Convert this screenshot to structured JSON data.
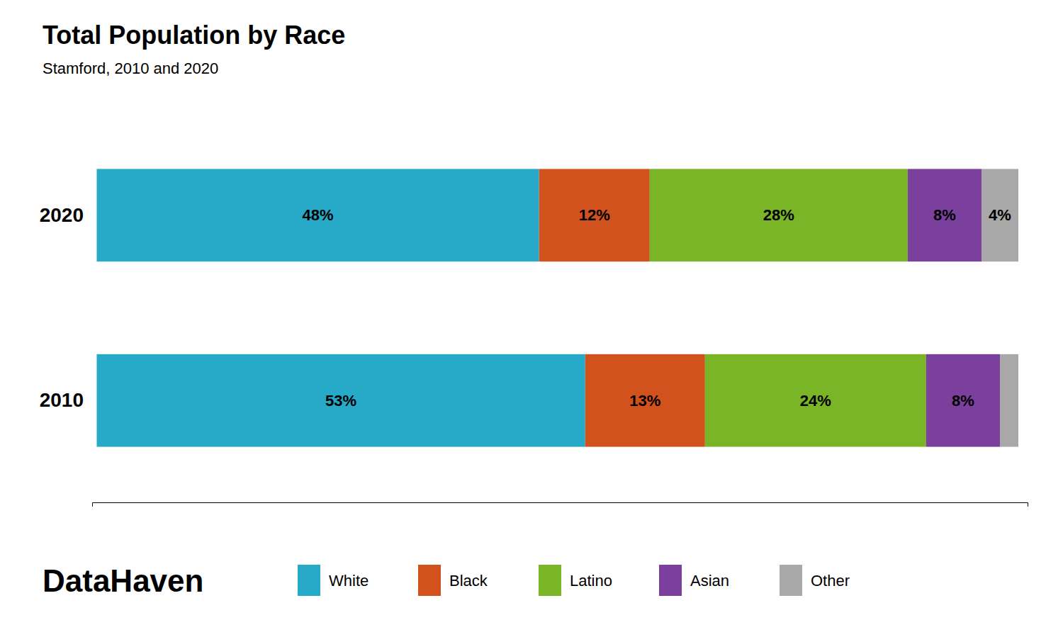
{
  "chart_data": {
    "type": "bar",
    "orientation": "horizontal",
    "stacked": true,
    "title": "Total Population by Race",
    "subtitle": "Stamford, 2010 and 2020",
    "annotation": "DataHaven",
    "categories": [
      "2020",
      "2010"
    ],
    "series": [
      {
        "name": "White",
        "color": "#27AAC8",
        "values": [
          48,
          53
        ],
        "value_labels": [
          "48%",
          "53%"
        ]
      },
      {
        "name": "Black",
        "color": "#D2521E",
        "values": [
          12,
          13
        ],
        "value_labels": [
          "12%",
          "13%"
        ]
      },
      {
        "name": "Latino",
        "color": "#7AB427",
        "values": [
          28,
          24
        ],
        "value_labels": [
          "28%",
          "24%"
        ]
      },
      {
        "name": "Asian",
        "color": "#7B3F9E",
        "values": [
          8,
          8
        ],
        "value_labels": [
          "8%",
          "8%"
        ]
      },
      {
        "name": "Other",
        "color": "#A8A8A8",
        "values": [
          4,
          2
        ],
        "value_labels": [
          "4%",
          null
        ]
      }
    ],
    "xlim": [
      -0.5,
      101
    ],
    "data_labels": true,
    "tick_labels": "y",
    "legend": "bottom",
    "grid": false
  }
}
